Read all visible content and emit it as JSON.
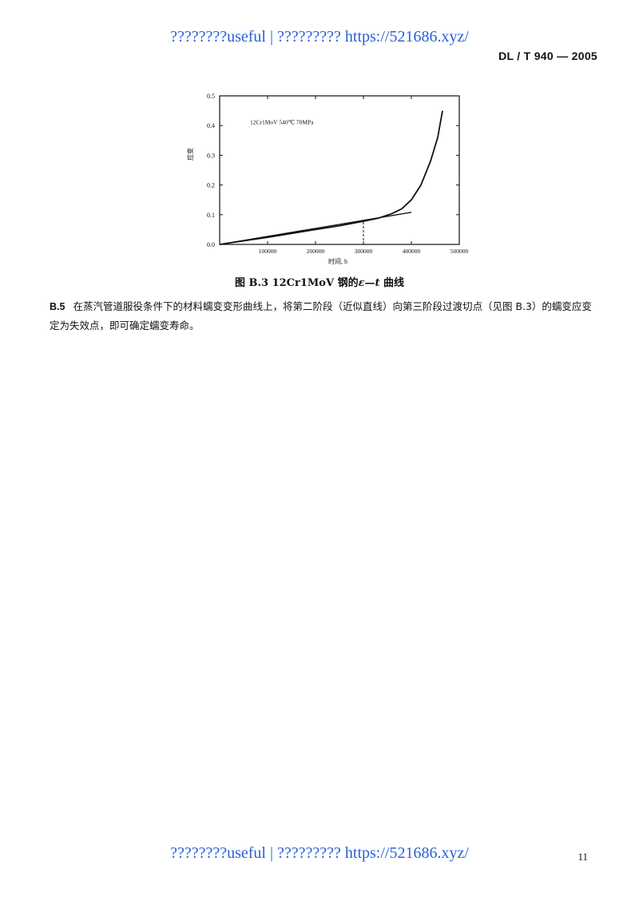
{
  "watermark": {
    "top": "????????useful | ????????? https://521686.xyz/",
    "bottom": "????????useful | ????????? https://521686.xyz/"
  },
  "header": {
    "standard_code": "DL / T 940 — 2005"
  },
  "figure": {
    "caption_prefix": "图 B.3   12Cr1MoV 钢的",
    "caption_symbol": "ε—t",
    "caption_suffix": " 曲线",
    "annotation": "12Cr1MoV  540℃  70MPa"
  },
  "chart_data": {
    "type": "line",
    "xlabel": "时间, h",
    "ylabel": "应变",
    "xlim": [
      0,
      500000
    ],
    "ylim": [
      0,
      0.5
    ],
    "x_ticks": [
      "100000",
      "200000",
      "300000",
      "400000",
      "500000"
    ],
    "y_ticks": [
      "0.0",
      "0.1",
      "0.2",
      "0.3",
      "0.4",
      "0.5"
    ],
    "series": [
      {
        "x": [
          0,
          50000,
          100000,
          150000,
          200000,
          250000,
          300000,
          330000,
          360000,
          380000,
          400000,
          420000,
          440000,
          455000,
          465000
        ],
        "y": [
          0.0,
          0.012,
          0.024,
          0.037,
          0.05,
          0.063,
          0.078,
          0.088,
          0.104,
          0.12,
          0.15,
          0.2,
          0.28,
          0.36,
          0.45
        ]
      },
      {
        "x": [
          0,
          400000
        ],
        "y": [
          0.0,
          0.108
        ]
      }
    ],
    "marker_x": 300000
  },
  "paragraph": {
    "number": "B.5",
    "text": "在蒸汽管道服役条件下的材料蠕变变形曲线上，将第二阶段（近似直线）向第三阶段过渡切点（见图 B.3）的蠕变应变定为失效点，即可确定蠕变寿命。"
  },
  "footer": {
    "page_number": "11"
  }
}
